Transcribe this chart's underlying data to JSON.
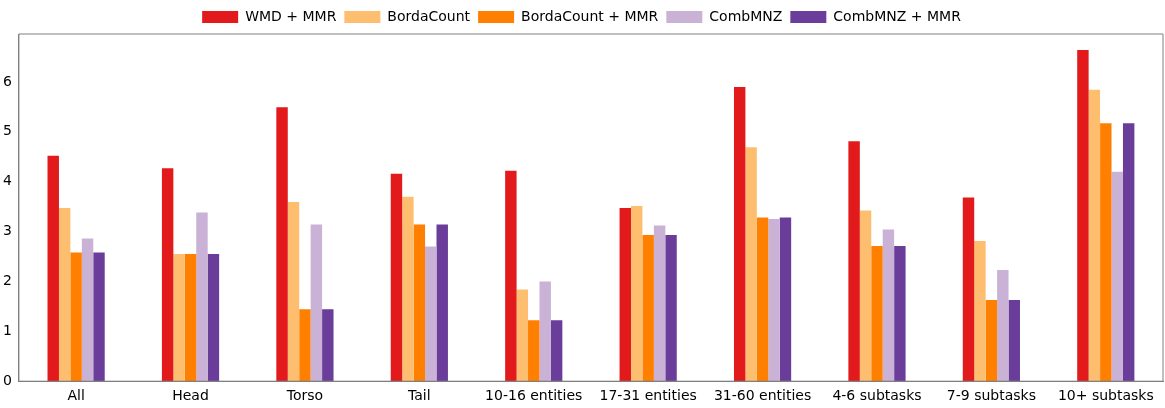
{
  "chart_data": {
    "type": "bar",
    "categories": [
      "All",
      "Head",
      "Torso",
      "Tail",
      "10-16 entities",
      "17-31 entities",
      "31-60 entities",
      "4-6 subtasks",
      "7-9 subtasks",
      "10+ subtasks"
    ],
    "series": [
      {
        "name": "WMD + MMR",
        "color": "#e31a1c",
        "values": [
          4.52,
          4.27,
          5.49,
          4.16,
          4.22,
          3.47,
          5.9,
          4.81,
          3.68,
          6.64
        ]
      },
      {
        "name": "BordaCount",
        "color": "#fdbf6f",
        "values": [
          3.47,
          2.55,
          3.59,
          3.7,
          1.84,
          3.51,
          4.69,
          3.42,
          2.81,
          5.84
        ]
      },
      {
        "name": "BordaCount + MMR",
        "color": "#ff7f00",
        "values": [
          2.58,
          2.55,
          1.44,
          3.14,
          1.22,
          2.93,
          3.28,
          2.71,
          1.63,
          5.17
        ]
      },
      {
        "name": "CombMNZ",
        "color": "#cab2d6",
        "values": [
          2.86,
          3.38,
          3.14,
          2.7,
          2.0,
          3.12,
          3.25,
          3.04,
          2.23,
          4.2
        ]
      },
      {
        "name": "CombMNZ + MMR",
        "color": "#6a3d9a",
        "values": [
          2.58,
          2.55,
          1.44,
          3.14,
          1.22,
          2.93,
          3.28,
          2.71,
          1.63,
          5.17
        ]
      }
    ],
    "ylim": [
      0,
      6.96
    ],
    "yticks": [
      0,
      1,
      2,
      3,
      4,
      5,
      6
    ],
    "grid": false,
    "legend": "top"
  }
}
